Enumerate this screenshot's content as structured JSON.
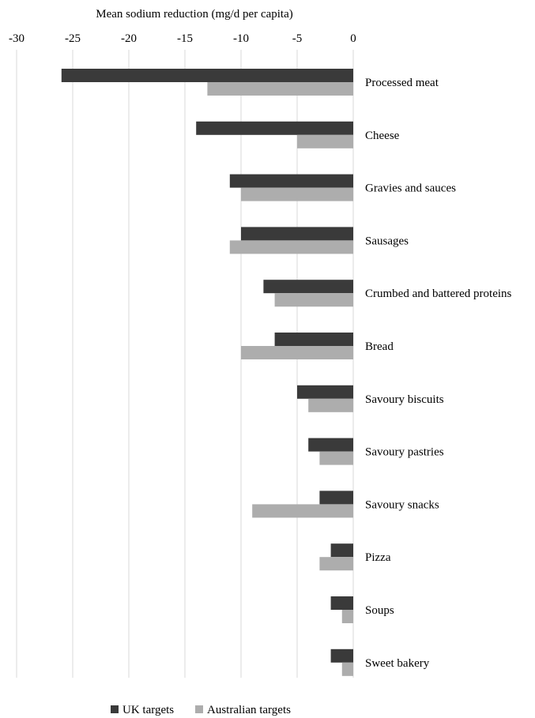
{
  "chart_data": {
    "type": "bar",
    "orientation": "horizontal",
    "title": "",
    "xlabel": "Mean sodium reduction (mg/d per capita)",
    "ylabel": "",
    "xlim": [
      -30,
      0
    ],
    "x_ticks": [
      "-30",
      "-25",
      "-20",
      "-15",
      "-10",
      "-5",
      "0"
    ],
    "x_axis_position": "top",
    "grid": true,
    "legend_position": "bottom-left",
    "categories": [
      "Processed meat",
      "Cheese",
      "Gravies and sauces",
      "Sausages",
      "Crumbed and battered proteins",
      "Bread",
      "Savoury biscuits",
      "Savoury pastries",
      "Savoury snacks",
      "Pizza",
      "Soups",
      "Sweet bakery"
    ],
    "series": [
      {
        "name": "UK targets",
        "color": "#3a3a3a",
        "values": [
          -26,
          -14,
          -11,
          -10,
          -8,
          -7,
          -5,
          -4,
          -3,
          -2,
          -2,
          -2
        ]
      },
      {
        "name": "Australian targets",
        "color": "#adadad",
        "values": [
          -13,
          -5,
          -10,
          -11,
          -7,
          -10,
          -4,
          -3,
          -9,
          -3,
          -1,
          -1
        ]
      }
    ]
  }
}
